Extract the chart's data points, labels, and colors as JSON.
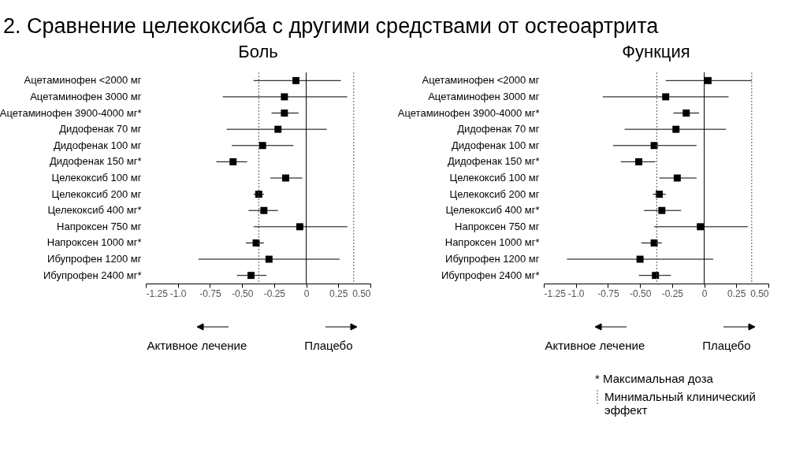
{
  "chart_data": [
    {
      "type": "scatter",
      "title": "2. Сравнение целекоксиба с другими средствами от остеоартрита",
      "subtitle": "Боль",
      "orientation": "horizontal",
      "marker": "square",
      "grid": false,
      "categories": [
        "Ацетаминофен <2000 мг",
        "Ацетаминофен  3000 мг",
        "Ацетаминофен 3900-4000 мг*",
        "Дидофенак   70 мг",
        "Дидофенак  100 мг",
        "Дидофенак  150 мг*",
        "Целекоксиб  100 мг",
        "Целекоксиб  200 мг",
        "Целекоксиб  400 мг*",
        "Напроксен  750 мг",
        "Напроксен  1000 мг*",
        "Ибупрофен 1200 мг",
        "Ибупрофен 2400 мг*"
      ],
      "series": [
        {
          "color": "#000000",
          "values": [
            -0.08,
            -0.17,
            -0.17,
            -0.22,
            -0.34,
            -0.57,
            -0.16,
            -0.37,
            -0.33,
            -0.05,
            -0.39,
            -0.29,
            -0.43
          ],
          "errors": [
            [
              -0.41,
              0.27
            ],
            [
              -0.65,
              0.32
            ],
            [
              -0.27,
              -0.06
            ],
            [
              -0.62,
              0.16
            ],
            [
              -0.58,
              -0.1
            ],
            [
              -0.7,
              -0.46
            ],
            [
              -0.28,
              -0.03
            ],
            [
              -0.41,
              -0.33
            ],
            [
              -0.45,
              -0.22
            ],
            [
              -0.41,
              0.32
            ],
            [
              -0.47,
              -0.33
            ],
            [
              -0.84,
              0.26
            ],
            [
              -0.54,
              -0.31
            ]
          ]
        }
      ],
      "xlim": [
        -1.25,
        0.5
      ],
      "xticks": [
        -1.25,
        {
          "value": -1,
          "label": "-1.0"
        },
        -0.75,
        {
          "value": -0.5,
          "label": "-0.50"
        },
        -0.25,
        0,
        0.25,
        {
          "value": 0.5,
          "label": "0.50"
        }
      ],
      "ref_lines": [
        {
          "axis": "x",
          "value": 0,
          "line_style": "solid",
          "color": "#000000"
        },
        {
          "axis": "x",
          "value": -0.37,
          "line_style": "dotted",
          "color": "#555555"
        },
        {
          "axis": "x",
          "value": 0.37,
          "line_style": "dotted",
          "color": "#555555"
        }
      ],
      "annotations": [
        "Активное лечение",
        "Плацебо"
      ]
    },
    {
      "type": "scatter",
      "subtitle": "Функция",
      "orientation": "horizontal",
      "marker": "square",
      "grid": false,
      "categories": [
        "Ацетаминофен <2000 мг",
        "Ацетаминофен  3000 мг",
        "Ацетаминофен 3900-4000 мг*",
        "Дидофенак   70 мг",
        "Дидофенак  100 мг",
        "Дидофенак  150 мг*",
        "Целекоксиб  100 мг",
        "Целекоксиб  200 мг",
        "Целекоксиб  400 мг*",
        "Напроксен  750 мг",
        "Напроксен  1000 мг*",
        "Ибупрофен 1200 мг",
        "Ибупрофен 2400 мг*"
      ],
      "series": [
        {
          "color": "#000000",
          "values": [
            0.03,
            -0.3,
            -0.14,
            -0.22,
            -0.39,
            -0.51,
            -0.21,
            -0.35,
            -0.33,
            -0.03,
            -0.39,
            -0.5,
            -0.38
          ],
          "errors": [
            [
              -0.3,
              0.37
            ],
            [
              -0.79,
              0.19
            ],
            [
              -0.24,
              -0.04
            ],
            [
              -0.62,
              0.17
            ],
            [
              -0.71,
              -0.06
            ],
            [
              -0.65,
              -0.38
            ],
            [
              -0.35,
              -0.06
            ],
            [
              -0.4,
              -0.3
            ],
            [
              -0.47,
              -0.18
            ],
            [
              -0.39,
              0.34
            ],
            [
              -0.49,
              -0.33
            ],
            [
              -1.07,
              0.07
            ],
            [
              -0.51,
              -0.26
            ]
          ]
        }
      ],
      "xlim": [
        -1.25,
        0.5
      ],
      "xticks": [
        -1.25,
        {
          "value": -1,
          "label": "-1.0"
        },
        -0.75,
        {
          "value": -0.5,
          "label": "-0.50"
        },
        -0.25,
        0,
        0.25,
        {
          "value": 0.5,
          "label": "0.50"
        }
      ],
      "ref_lines": [
        {
          "axis": "x",
          "value": 0,
          "line_style": "solid",
          "color": "#000000"
        },
        {
          "axis": "x",
          "value": -0.37,
          "line_style": "dotted",
          "color": "#555555"
        },
        {
          "axis": "x",
          "value": 0.37,
          "line_style": "dotted",
          "color": "#555555"
        }
      ],
      "annotations": [
        "Активное лечение",
        "Плацебо",
        "* Максимальная доза",
        "Минимальный клинический эффект"
      ]
    }
  ]
}
